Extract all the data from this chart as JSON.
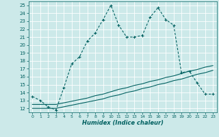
{
  "title": "",
  "xlabel": "Humidex (Indice chaleur)",
  "background_color": "#cce9e9",
  "grid_color": "#b0d0d0",
  "line_color": "#006060",
  "xlim": [
    -0.5,
    23.5
  ],
  "ylim": [
    11.5,
    25.5
  ],
  "xticks": [
    0,
    1,
    2,
    3,
    4,
    5,
    6,
    7,
    8,
    9,
    10,
    11,
    12,
    13,
    14,
    15,
    16,
    17,
    18,
    19,
    20,
    21,
    22,
    23
  ],
  "yticks": [
    12,
    13,
    14,
    15,
    16,
    17,
    18,
    19,
    20,
    21,
    22,
    23,
    24,
    25
  ],
  "series1_x": [
    0,
    1,
    2,
    3,
    4,
    5,
    6,
    7,
    8,
    9,
    10,
    11,
    12,
    13,
    14,
    15,
    16,
    17,
    18,
    19,
    20,
    21,
    22,
    23
  ],
  "series1_y": [
    13.5,
    13.0,
    12.2,
    11.8,
    14.6,
    17.6,
    18.5,
    20.5,
    21.5,
    23.2,
    25.0,
    22.5,
    21.0,
    21.0,
    21.2,
    23.5,
    24.7,
    23.2,
    22.5,
    16.5,
    16.7,
    15.2,
    13.8,
    13.8
  ],
  "series2_x": [
    0,
    1,
    2,
    3,
    4,
    5,
    6,
    7,
    8,
    9,
    10,
    11,
    12,
    13,
    14,
    15,
    16,
    17,
    18,
    19,
    20,
    21,
    22,
    23
  ],
  "series2_y": [
    12.0,
    12.0,
    12.0,
    12.0,
    12.2,
    12.4,
    12.6,
    12.8,
    13.0,
    13.2,
    13.5,
    13.7,
    14.0,
    14.2,
    14.5,
    14.7,
    15.0,
    15.2,
    15.5,
    15.7,
    16.0,
    16.3,
    16.5,
    16.8
  ],
  "series3_x": [
    0,
    1,
    2,
    3,
    4,
    5,
    6,
    7,
    8,
    9,
    10,
    11,
    12,
    13,
    14,
    15,
    16,
    17,
    18,
    19,
    20,
    21,
    22,
    23
  ],
  "series3_y": [
    12.5,
    12.5,
    12.5,
    12.5,
    12.7,
    12.9,
    13.1,
    13.3,
    13.6,
    13.8,
    14.1,
    14.4,
    14.6,
    14.9,
    15.1,
    15.4,
    15.6,
    15.9,
    16.1,
    16.4,
    16.7,
    16.9,
    17.2,
    17.4
  ]
}
